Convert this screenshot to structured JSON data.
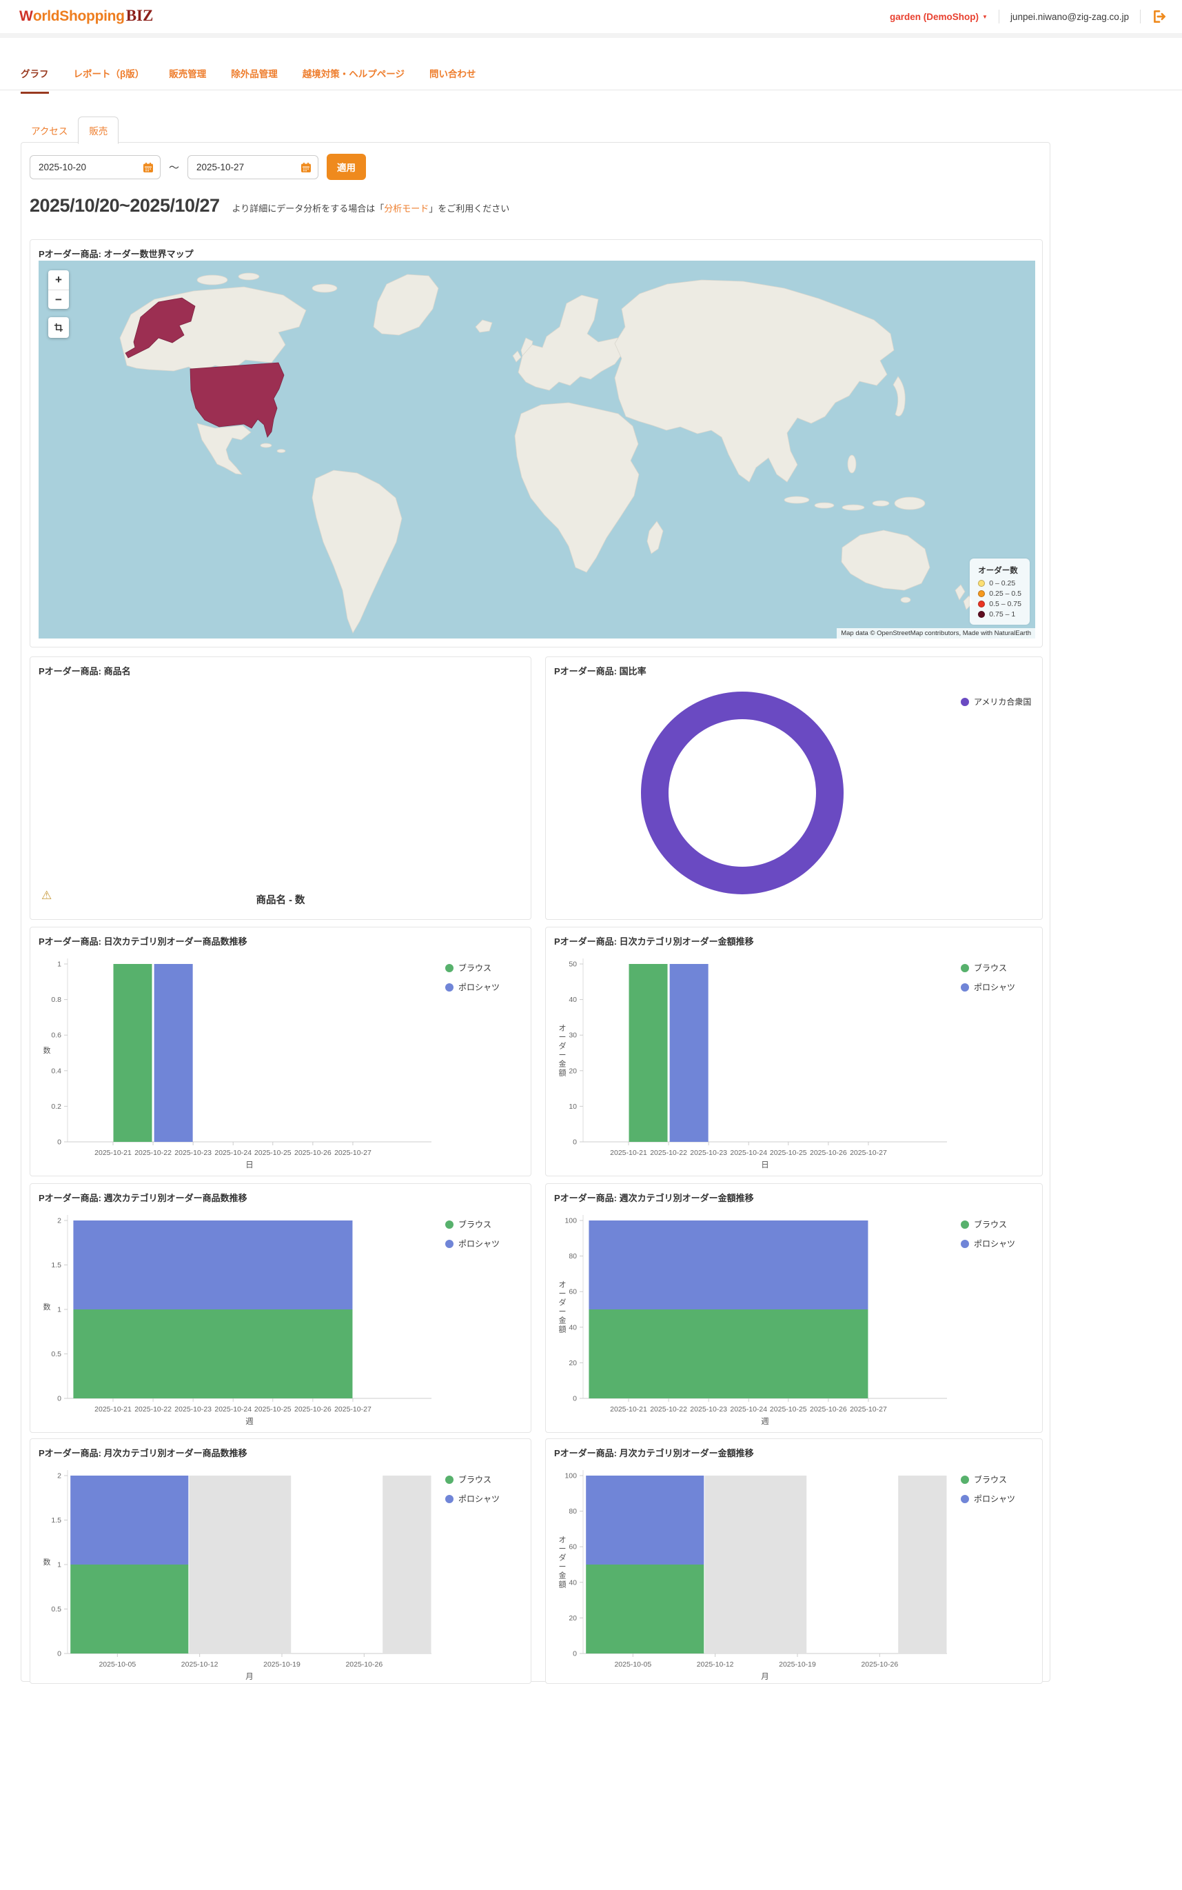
{
  "theme": {
    "accent": "#ef8a1d",
    "nav_link": "#ee7e2e",
    "nav_active": "#993a20",
    "link_red": "#e8402f",
    "purple": "#6a4ac2",
    "green": "#57b16c",
    "blue": "#7085d7",
    "bar_gray": "#e2e2e2",
    "map_ocean": "#a9d0dc",
    "map_land": "#edebe3",
    "map_land_stroke": "#d9d6cd",
    "map_highlight": "#9c2f52"
  },
  "header": {
    "logo_w": "W",
    "logo_main": "orldShopping",
    "logo_suffix": "BIZ",
    "shop_name": "garden (DemoShop)",
    "shop_caret": "▼",
    "email": "junpei.niwano@zig-zag.co.jp"
  },
  "nav": {
    "items": [
      {
        "label": "グラフ",
        "active": true
      },
      {
        "label": "レポート（β版）",
        "active": false
      },
      {
        "label": "販売管理",
        "active": false
      },
      {
        "label": "除外品管理",
        "active": false
      },
      {
        "label": "越境対策・ヘルプページ",
        "active": false
      },
      {
        "label": "問い合わせ",
        "active": false
      }
    ]
  },
  "tabs": [
    {
      "label": "アクセス",
      "active": false
    },
    {
      "label": "販売",
      "active": true
    }
  ],
  "filters": {
    "start_date": "2025-10-20",
    "separator": "～",
    "end_date": "2025-10-27",
    "apply_label": "適用"
  },
  "heading": {
    "date_range": "2025/10/20~2025/10/27",
    "note_prefix": "より詳細にデータ分析をする場合は「",
    "note_link": "分析モード",
    "note_suffix": "」をご利用ください"
  },
  "map_panel": {
    "title": "Pオーダー商品: オーダー数世界マップ",
    "controls": {
      "zoom_in": "+",
      "zoom_out": "−"
    },
    "legend_title": "オーダー数",
    "legend_items": [
      {
        "label": "0 – 0.25",
        "color": "#fcdf73"
      },
      {
        "label": "0.25 – 0.5",
        "color": "#f6991e"
      },
      {
        "label": "0.5 – 0.75",
        "color": "#ea3423"
      },
      {
        "label": "0.75 – 1",
        "color": "#5f0d20"
      }
    ],
    "attribution": "Map data © OpenStreetMap contributors, Made with NaturalEarth"
  },
  "product_panel": {
    "title": "Pオーダー商品: 商品名",
    "warning_icon": "⚠",
    "footer_label": "商品名 - 数"
  },
  "chart_data": [
    {
      "id": "order-world-map",
      "type": "choropleth",
      "title": "Pオーダー商品: オーダー数世界マップ",
      "legend_title": "オーダー数",
      "buckets": [
        "0 – 0.25",
        "0.25 – 0.5",
        "0.5 – 0.75",
        "0.75 – 1"
      ],
      "countries": [
        {
          "name": "アメリカ合衆国",
          "value": 1
        }
      ]
    },
    {
      "id": "country-ratio",
      "type": "donut",
      "title": "Pオーダー商品: 国比率",
      "series": [
        {
          "name": "アメリカ合衆国",
          "value": 100,
          "color": "#6a4ac2"
        }
      ]
    },
    {
      "id": "daily-count",
      "type": "bar",
      "title": "Pオーダー商品: 日次カテゴリ別オーダー商品数推移",
      "xlabel": "日",
      "ylabel": "数",
      "ylim": [
        0,
        1
      ],
      "yticks": [
        0,
        0.2,
        0.4,
        0.6,
        0.8,
        1
      ],
      "ytick_labels": [
        "0",
        "0.2",
        "0.4",
        "0.6",
        "0.8",
        "1"
      ],
      "xticks": [
        {
          "label": "2025-10-21",
          "x": 0.125
        },
        {
          "label": "2025-10-22",
          "x": 0.235
        },
        {
          "label": "2025-10-23",
          "x": 0.345
        },
        {
          "label": "2025-10-24",
          "x": 0.455
        },
        {
          "label": "2025-10-25",
          "x": 0.564
        },
        {
          "label": "2025-10-26",
          "x": 0.674
        },
        {
          "label": "2025-10-27",
          "x": 0.784
        }
      ],
      "series": [
        {
          "name": "ブラウス",
          "color": "#57b16c",
          "values": [
            1,
            0,
            0,
            0,
            0,
            0,
            0
          ]
        },
        {
          "name": "ポロシャツ",
          "color": "#7085d7",
          "values": [
            0,
            1,
            0,
            0,
            0,
            0,
            0
          ]
        }
      ],
      "bars": [
        {
          "x0": 0.125,
          "x1": 0.233,
          "segments": [
            {
              "series": "ブラウス",
              "y0": 0,
              "y1": 1
            }
          ]
        },
        {
          "x0": 0.237,
          "x1": 0.345,
          "segments": [
            {
              "series": "ポロシャツ",
              "y0": 0,
              "y1": 1
            }
          ]
        }
      ]
    },
    {
      "id": "daily-amount",
      "type": "bar",
      "title": "Pオーダー商品: 日次カテゴリ別オーダー金額推移",
      "xlabel": "日",
      "ylabel": "オーダー金額",
      "ylim": [
        0,
        50
      ],
      "yticks": [
        0,
        10,
        20,
        30,
        40,
        50
      ],
      "ytick_labels": [
        "0",
        "10",
        "20",
        "30",
        "40",
        "50"
      ],
      "xticks": [
        {
          "label": "2025-10-21",
          "x": 0.125
        },
        {
          "label": "2025-10-22",
          "x": 0.235
        },
        {
          "label": "2025-10-23",
          "x": 0.345
        },
        {
          "label": "2025-10-24",
          "x": 0.455
        },
        {
          "label": "2025-10-25",
          "x": 0.564
        },
        {
          "label": "2025-10-26",
          "x": 0.674
        },
        {
          "label": "2025-10-27",
          "x": 0.784
        }
      ],
      "series": [
        {
          "name": "ブラウス",
          "color": "#57b16c",
          "values": [
            50,
            0,
            0,
            0,
            0,
            0,
            0
          ]
        },
        {
          "name": "ポロシャツ",
          "color": "#7085d7",
          "values": [
            0,
            50,
            0,
            0,
            0,
            0,
            0
          ]
        }
      ],
      "bars": [
        {
          "x0": 0.125,
          "x1": 0.233,
          "segments": [
            {
              "series": "ブラウス",
              "y0": 0,
              "y1": 50
            }
          ]
        },
        {
          "x0": 0.237,
          "x1": 0.345,
          "segments": [
            {
              "series": "ポロシャツ",
              "y0": 0,
              "y1": 50
            }
          ]
        }
      ]
    },
    {
      "id": "weekly-count",
      "type": "bar",
      "title": "Pオーダー商品: 週次カテゴリ別オーダー商品数推移",
      "xlabel": "週",
      "ylabel": "数",
      "ylim": [
        0,
        2
      ],
      "yticks": [
        0,
        0.5,
        1,
        1.5,
        2
      ],
      "ytick_labels": [
        "0",
        "0.5",
        "1",
        "1.5",
        "2"
      ],
      "week_start": "2025-10-20",
      "xticks": [
        {
          "label": "2025-10-21",
          "x": 0.125
        },
        {
          "label": "2025-10-22",
          "x": 0.235
        },
        {
          "label": "2025-10-23",
          "x": 0.345
        },
        {
          "label": "2025-10-24",
          "x": 0.455
        },
        {
          "label": "2025-10-25",
          "x": 0.564
        },
        {
          "label": "2025-10-26",
          "x": 0.674
        },
        {
          "label": "2025-10-27",
          "x": 0.784
        }
      ],
      "series": [
        {
          "name": "ブラウス",
          "color": "#57b16c",
          "values": [
            1
          ]
        },
        {
          "name": "ポロシャツ",
          "color": "#7085d7",
          "values": [
            1
          ]
        }
      ],
      "bars": [
        {
          "x0": 0.015,
          "x1": 0.784,
          "segments": [
            {
              "series": "ブラウス",
              "y0": 0,
              "y1": 1
            },
            {
              "series": "ポロシャツ",
              "y0": 1,
              "y1": 2
            }
          ]
        }
      ]
    },
    {
      "id": "weekly-amount",
      "type": "bar",
      "title": "Pオーダー商品: 週次カテゴリ別オーダー金額推移",
      "xlabel": "週",
      "ylabel": "オーダー金額",
      "ylim": [
        0,
        100
      ],
      "yticks": [
        0,
        20,
        40,
        60,
        80,
        100
      ],
      "ytick_labels": [
        "0",
        "20",
        "40",
        "60",
        "80",
        "100"
      ],
      "week_start": "2025-10-20",
      "xticks": [
        {
          "label": "2025-10-21",
          "x": 0.125
        },
        {
          "label": "2025-10-22",
          "x": 0.235
        },
        {
          "label": "2025-10-23",
          "x": 0.345
        },
        {
          "label": "2025-10-24",
          "x": 0.455
        },
        {
          "label": "2025-10-25",
          "x": 0.564
        },
        {
          "label": "2025-10-26",
          "x": 0.674
        },
        {
          "label": "2025-10-27",
          "x": 0.784
        }
      ],
      "series": [
        {
          "name": "ブラウス",
          "color": "#57b16c",
          "values": [
            50
          ]
        },
        {
          "name": "ポロシャツ",
          "color": "#7085d7",
          "values": [
            50
          ]
        }
      ],
      "bars": [
        {
          "x0": 0.015,
          "x1": 0.784,
          "segments": [
            {
              "series": "ブラウス",
              "y0": 0,
              "y1": 50
            },
            {
              "series": "ポロシャツ",
              "y0": 50,
              "y1": 100
            }
          ]
        }
      ]
    },
    {
      "id": "monthly-count",
      "type": "bar",
      "title": "Pオーダー商品: 月次カテゴリ別オーダー商品数推移",
      "xlabel": "月",
      "ylabel": "数",
      "ylim": [
        0,
        2
      ],
      "yticks": [
        0,
        0.5,
        1,
        1.5,
        2
      ],
      "ytick_labels": [
        "0",
        "0.5",
        "1",
        "1.5",
        "2"
      ],
      "xticks": [
        {
          "label": "2025-10-05",
          "x": 0.137
        },
        {
          "label": "2025-10-12",
          "x": 0.363
        },
        {
          "label": "2025-10-19",
          "x": 0.589
        },
        {
          "label": "2025-10-26",
          "x": 0.815
        }
      ],
      "series": [
        {
          "name": "ブラウス",
          "color": "#57b16c",
          "values": [
            1
          ]
        },
        {
          "name": "ポロシャツ",
          "color": "#7085d7",
          "values": [
            1
          ]
        }
      ],
      "bars": [
        {
          "x0": 0.007,
          "x1": 0.333,
          "segments": [
            {
              "series": "ブラウス",
              "y0": 0,
              "y1": 1
            },
            {
              "series": "ポロシャツ",
              "y0": 1,
              "y1": 2
            }
          ]
        },
        {
          "x0": 0.333,
          "x1": 0.615,
          "segments": [
            {
              "series": null,
              "color": "#e2e2e2",
              "y0": 0,
              "y1": 2
            }
          ]
        },
        {
          "x0": 0.865,
          "x1": 1.0,
          "segments": [
            {
              "series": null,
              "color": "#e2e2e2",
              "y0": 0,
              "y1": 2
            }
          ]
        }
      ]
    },
    {
      "id": "monthly-amount",
      "type": "bar",
      "title": "Pオーダー商品: 月次カテゴリ別オーダー金額推移",
      "xlabel": "月",
      "ylabel": "オーダー金額",
      "ylim": [
        0,
        100
      ],
      "yticks": [
        0,
        20,
        40,
        60,
        80,
        100
      ],
      "ytick_labels": [
        "0",
        "20",
        "40",
        "60",
        "80",
        "100"
      ],
      "xticks": [
        {
          "label": "2025-10-05",
          "x": 0.137
        },
        {
          "label": "2025-10-12",
          "x": 0.363
        },
        {
          "label": "2025-10-19",
          "x": 0.589
        },
        {
          "label": "2025-10-26",
          "x": 0.815
        }
      ],
      "series": [
        {
          "name": "ブラウス",
          "color": "#57b16c",
          "values": [
            50
          ]
        },
        {
          "name": "ポロシャツ",
          "color": "#7085d7",
          "values": [
            50
          ]
        }
      ],
      "bars": [
        {
          "x0": 0.007,
          "x1": 0.333,
          "segments": [
            {
              "series": "ブラウス",
              "y0": 0,
              "y1": 50
            },
            {
              "series": "ポロシャツ",
              "y0": 50,
              "y1": 100
            }
          ]
        },
        {
          "x0": 0.333,
          "x1": 0.615,
          "segments": [
            {
              "series": null,
              "color": "#e2e2e2",
              "y0": 0,
              "y1": 100
            }
          ]
        },
        {
          "x0": 0.865,
          "x1": 1.0,
          "segments": [
            {
              "series": null,
              "color": "#e2e2e2",
              "y0": 0,
              "y1": 100
            }
          ]
        }
      ]
    }
  ]
}
